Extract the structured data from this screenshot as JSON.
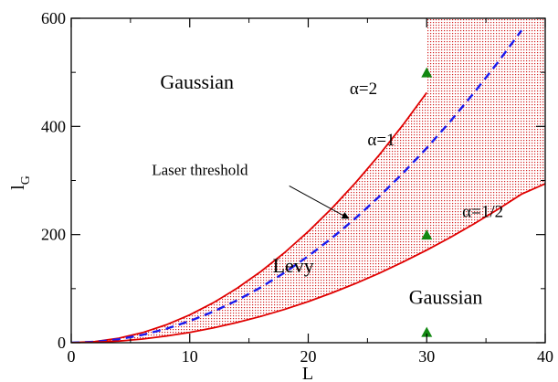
{
  "chart_data": {
    "type": "line",
    "xlabel": "L",
    "ylabel_main": "l",
    "ylabel_sub": "G",
    "xlim": [
      0,
      40
    ],
    "ylim": [
      0,
      600
    ],
    "xticks": [
      0,
      10,
      20,
      30,
      40
    ],
    "yticks": [
      0,
      200,
      400,
      600
    ],
    "xtick_labels": [
      "0",
      "10",
      "20",
      "30",
      "40"
    ],
    "ytick_labels": [
      "0",
      "200",
      "400",
      "600"
    ],
    "grid": false,
    "series": [
      {
        "name": "α=2",
        "color": "#e00000",
        "style": "solid",
        "x": [
          0,
          2,
          4,
          6,
          8,
          10,
          12,
          14,
          16,
          18,
          20,
          22,
          24,
          26,
          28,
          30
        ],
        "y": [
          0,
          2.1,
          8.2,
          18.5,
          32.9,
          51.4,
          74.0,
          100.7,
          131.6,
          166.5,
          205.6,
          248.7,
          296.0,
          347.4,
          402.9,
          462.5
        ]
      },
      {
        "name": "α=1",
        "color": "#1a1aee",
        "style": "dashed",
        "x": [
          0,
          2,
          4,
          6,
          8,
          10,
          12,
          14,
          16,
          18,
          20,
          22,
          24,
          26,
          28,
          30,
          32,
          34,
          36,
          38
        ],
        "y": [
          0,
          1.6,
          6.4,
          14.4,
          25.6,
          40.0,
          57.6,
          78.4,
          102.4,
          129.6,
          160.0,
          193.6,
          230.4,
          270.4,
          313.6,
          360.0,
          409.6,
          462.4,
          518.4,
          577.6
        ]
      },
      {
        "name": "α=1/2",
        "color": "#e00000",
        "style": "solid",
        "x": [
          0,
          2,
          4,
          6,
          8,
          10,
          12,
          14,
          16,
          18,
          20,
          22,
          24,
          26,
          28,
          30,
          32,
          34,
          36,
          38,
          40
        ],
        "y": [
          0,
          0.8,
          3.0,
          6.8,
          12.2,
          19.0,
          27.4,
          37.3,
          48.7,
          61.6,
          76.1,
          92.1,
          109.6,
          128.6,
          149.2,
          171.2,
          194.8,
          219.9,
          246.5,
          274.7,
          294
        ]
      }
    ],
    "markers": {
      "shape": "triangle",
      "color": "#118811",
      "points": [
        {
          "x": 30,
          "y": 500
        },
        {
          "x": 30,
          "y": 200
        },
        {
          "x": 30,
          "y": 20
        }
      ]
    },
    "region_fill_color": "#d42020",
    "annotations": [
      {
        "text": "Gaussian",
        "x": 7.5,
        "y": 470
      },
      {
        "text": "α=2",
        "x": 23.5,
        "y": 460
      },
      {
        "text": "α=1",
        "x": 25.0,
        "y": 365
      },
      {
        "text": "Laser threshold",
        "x": 6.8,
        "y": 310
      },
      {
        "text": "α=1/2",
        "x": 33.0,
        "y": 232
      },
      {
        "text": "Levy",
        "x": 17.0,
        "y": 130
      },
      {
        "text": "Gaussian",
        "x": 28.5,
        "y": 72
      }
    ],
    "arrow": {
      "from": {
        "x": 18.4,
        "y": 290
      },
      "to": {
        "x": 23.4,
        "y": 230
      }
    }
  }
}
